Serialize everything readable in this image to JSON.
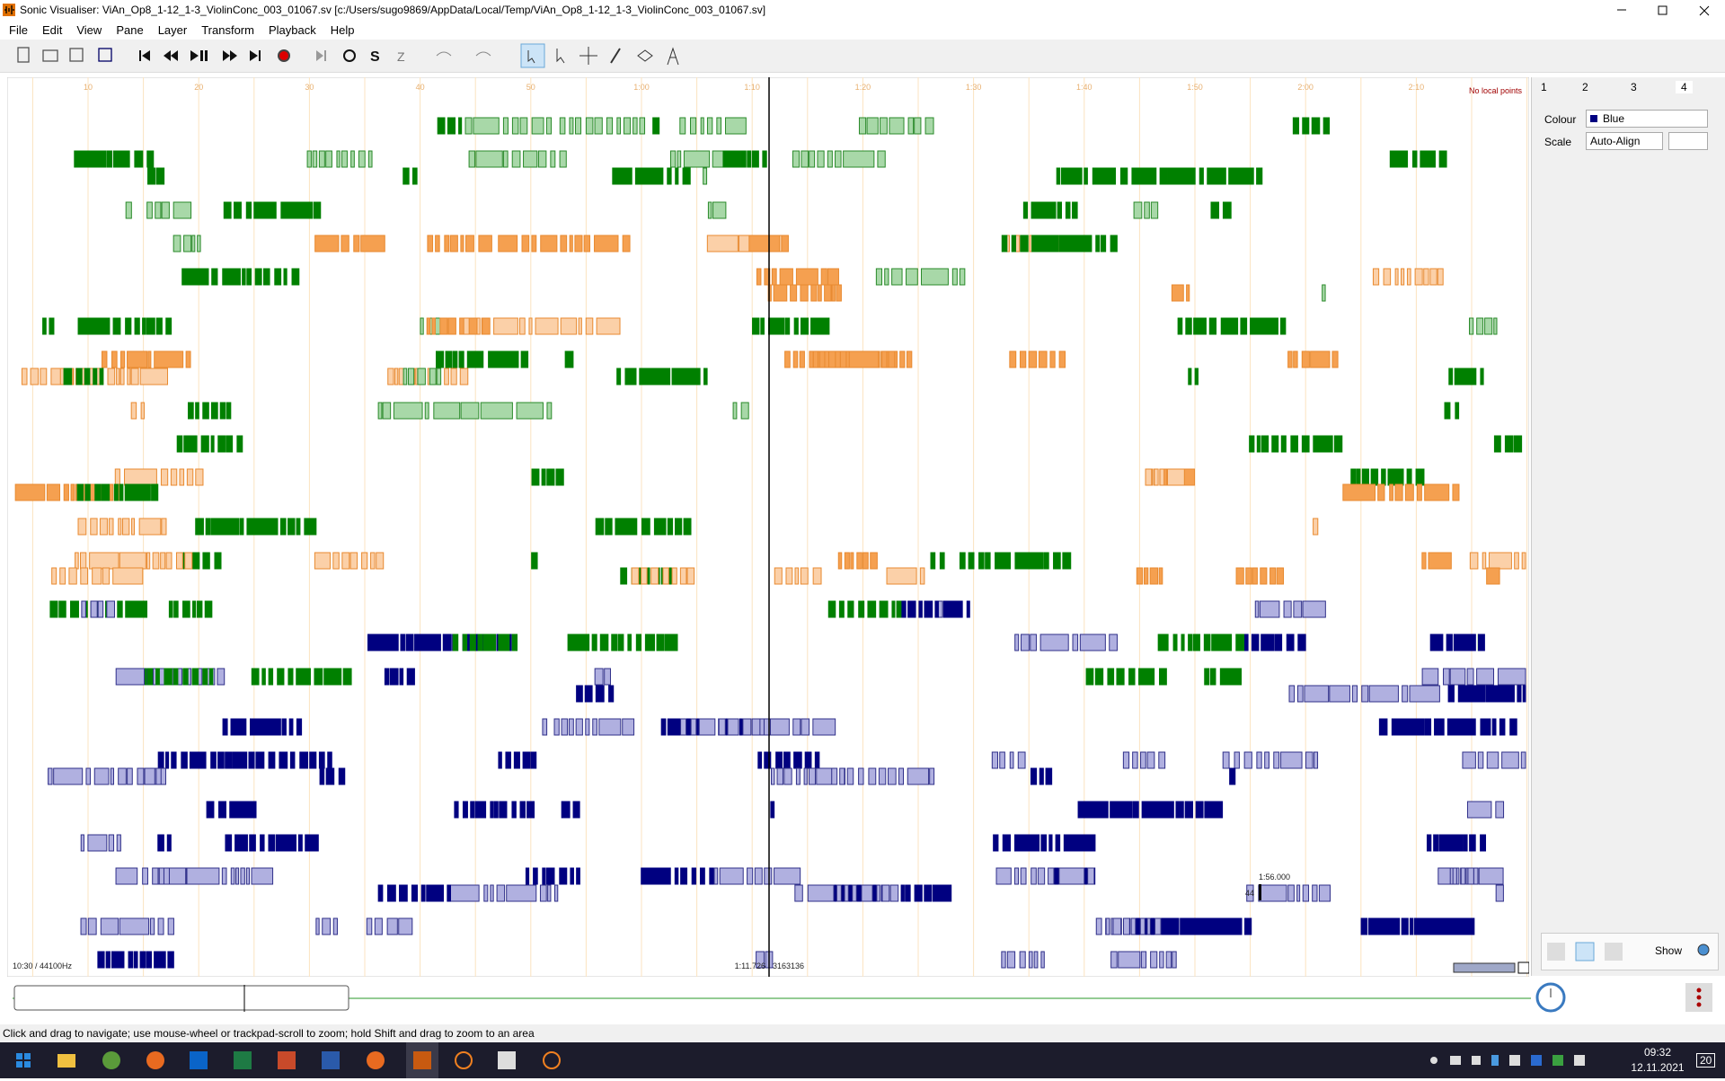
{
  "window": {
    "title": "Sonic Visualiser: ViAn_Op8_1-12_1-3_ViolinConc_003_01067.sv [c:/Users/sugo9869/AppData/Local/Temp/ViAn_Op8_1-12_1-3_ViolinConc_003_01067.sv]"
  },
  "menu": [
    "File",
    "Edit",
    "View",
    "Pane",
    "Layer",
    "Transform",
    "Playback",
    "Help"
  ],
  "ruler": [
    "10",
    "20",
    "30",
    "40",
    "50",
    "1:00",
    "1:10",
    "1:20",
    "1:30",
    "1:40",
    "1:50",
    "2:00",
    "2:10"
  ],
  "pane": {
    "no_local_points": "No local points",
    "sample_rate": "10:30 / 44100Hz",
    "playhead_time": "1:11.726",
    "playhead_frame": "3163136",
    "cursor_time": "1:56.000",
    "cursor_value": "44"
  },
  "panel": {
    "tabs": [
      "1",
      "2",
      "3",
      "4"
    ],
    "colour_label": "Colour",
    "colour_value": "Blue",
    "scale_label": "Scale",
    "scale_value": "Auto-Align",
    "show_label": "Show"
  },
  "status_bar": "Click and drag to navigate; use mouse-wheel or trackpad-scroll to zoom; hold Shift and drag to zoom to an area",
  "taskbar": {
    "time": "09:32",
    "date": "12.11.2021",
    "notifications": "20"
  }
}
